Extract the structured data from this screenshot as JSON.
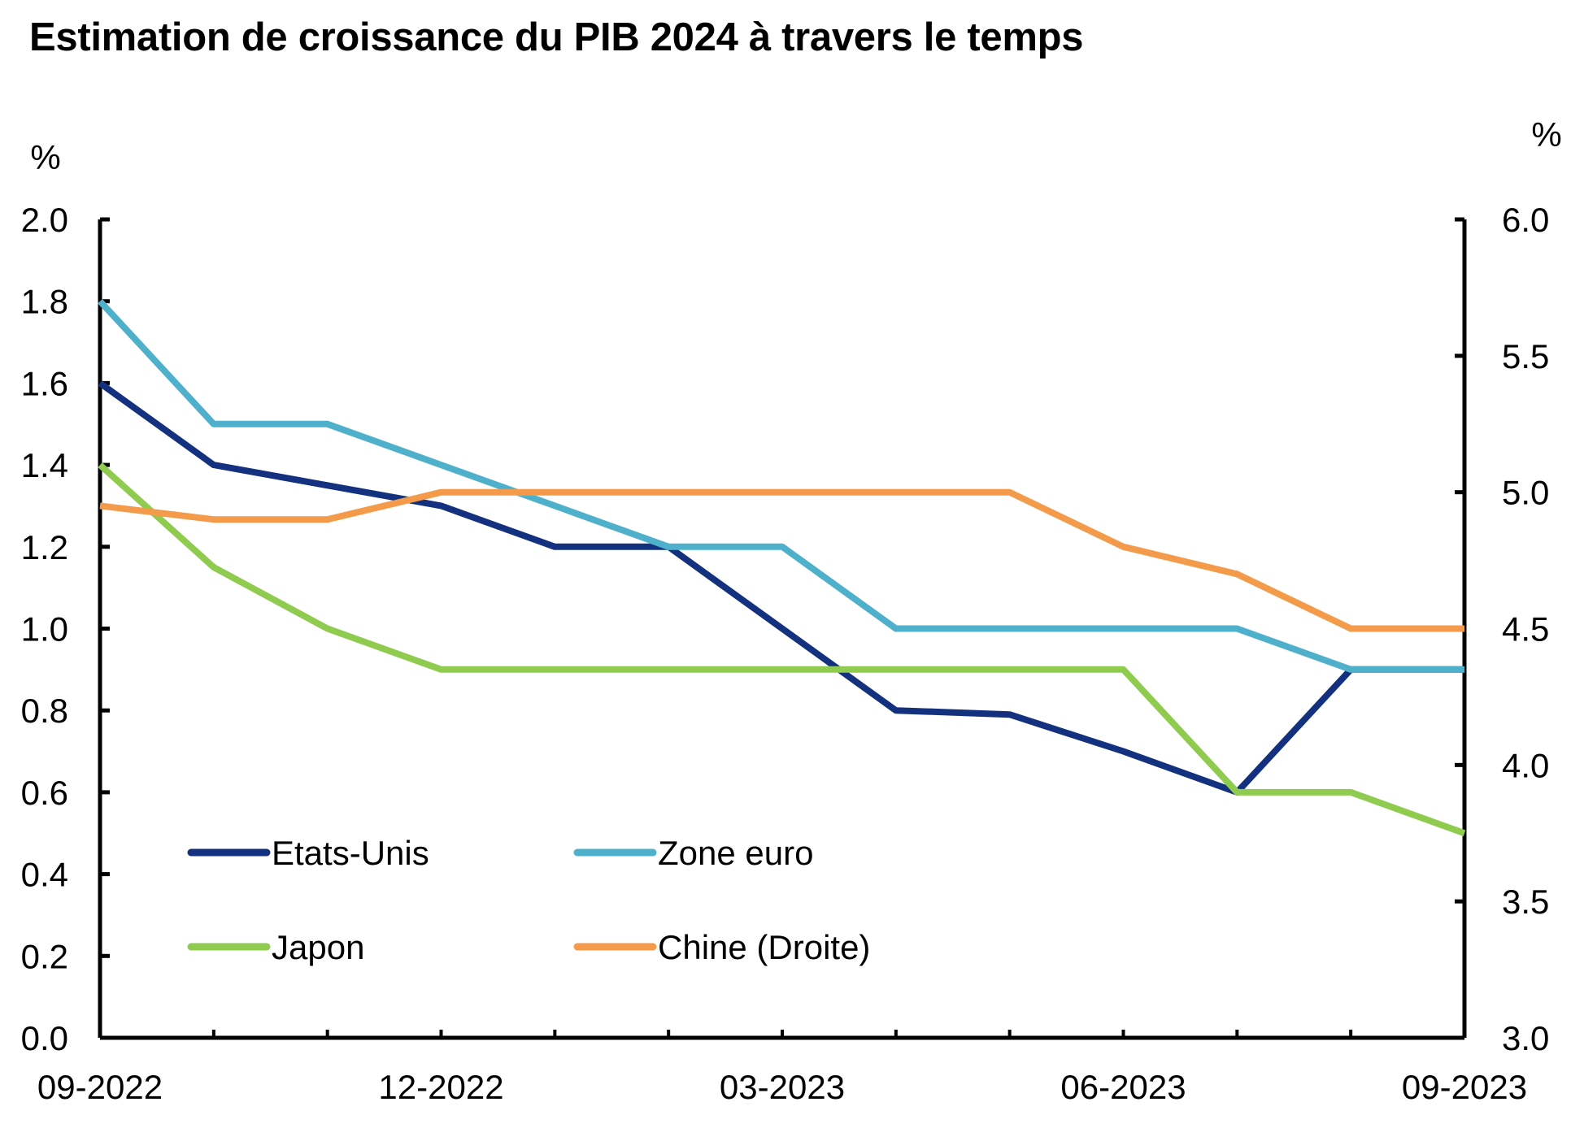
{
  "chart_data": {
    "type": "line",
    "title": "Estimation de croissance du PIB 2024 à travers le temps",
    "y_left_unit": "%",
    "y_right_unit": "%",
    "x": [
      "09-2022",
      "10-2022",
      "11-2022",
      "12-2022",
      "01-2023",
      "02-2023",
      "03-2023",
      "04-2023",
      "05-2023",
      "06-2023",
      "07-2023",
      "08-2023",
      "09-2023"
    ],
    "x_tick_labels": [
      "09-2022",
      "12-2022",
      "03-2023",
      "06-2023",
      "09-2023"
    ],
    "ylim_left": [
      0,
      2
    ],
    "y_left_ticks": [
      "0.0",
      "0.2",
      "0.4",
      "0.6",
      "0.8",
      "1.0",
      "1.2",
      "1.4",
      "1.6",
      "1.8",
      "2.0"
    ],
    "ylim_right": [
      3,
      6
    ],
    "y_right_ticks": [
      "3.0",
      "3.5",
      "4.0",
      "4.5",
      "5.0",
      "5.5",
      "6.0"
    ],
    "grid": false,
    "legend_placement": "bottom-left inside",
    "series": [
      {
        "name": "Etats-Unis",
        "axis": "left",
        "color": "#13317f",
        "values": [
          1.6,
          1.4,
          1.35,
          1.3,
          1.2,
          1.2,
          1.0,
          0.8,
          0.79,
          0.7,
          0.6,
          0.9,
          0.9
        ]
      },
      {
        "name": "Zone euro",
        "axis": "left",
        "color": "#4fb0cc",
        "values": [
          1.8,
          1.5,
          1.5,
          1.4,
          1.3,
          1.2,
          1.2,
          1.0,
          1.0,
          1.0,
          1.0,
          0.9,
          0.9
        ]
      },
      {
        "name": "Japon",
        "axis": "left",
        "color": "#8ecb4f",
        "values": [
          1.4,
          1.15,
          1.0,
          0.9,
          0.9,
          0.9,
          0.9,
          0.9,
          0.9,
          0.9,
          0.6,
          0.6,
          0.5
        ]
      },
      {
        "name": "Chine (Droite)",
        "axis": "right",
        "color": "#f39a4b",
        "values": [
          4.95,
          4.9,
          4.9,
          5.0,
          5.0,
          5.0,
          5.0,
          5.0,
          5.0,
          4.8,
          4.7,
          4.5,
          4.5
        ]
      }
    ]
  }
}
